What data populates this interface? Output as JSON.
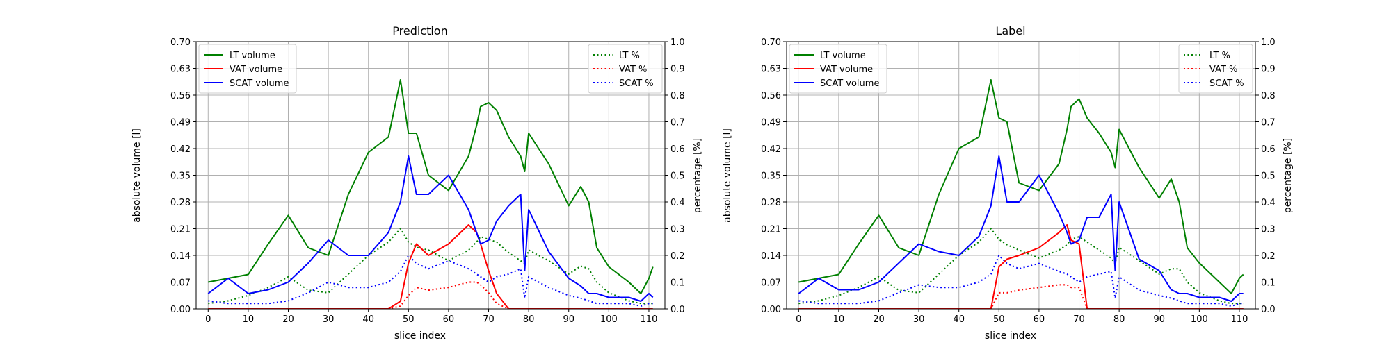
{
  "chart_data": [
    {
      "type": "line",
      "title": "Prediction",
      "xlabel": "slice index",
      "ylabel_left": "absolute volume [l]",
      "ylabel_right": "percentage [%]",
      "xlim": [
        -3,
        114
      ],
      "ylim_left": [
        0,
        0.7
      ],
      "ylim_right": [
        0,
        1.0
      ],
      "x_ticks": [
        "0",
        "10",
        "20",
        "30",
        "40",
        "50",
        "60",
        "70",
        "80",
        "90",
        "100",
        "110"
      ],
      "y_ticks_left": [
        "0.00",
        "0.07",
        "0.14",
        "0.21",
        "0.28",
        "0.35",
        "0.42",
        "0.49",
        "0.56",
        "0.63",
        "0.70"
      ],
      "y_ticks_right": [
        "0.0",
        "0.1",
        "0.2",
        "0.3",
        "0.4",
        "0.5",
        "0.6",
        "0.7",
        "0.8",
        "0.9",
        "1.0"
      ],
      "grid": true,
      "legend_left_placement": "upper-left",
      "legend_right_placement": "upper-right",
      "x": [
        0,
        5,
        10,
        15,
        20,
        25,
        30,
        35,
        40,
        45,
        48,
        50,
        52,
        55,
        60,
        65,
        67,
        68,
        70,
        72,
        75,
        78,
        79,
        80,
        85,
        90,
        93,
        95,
        97,
        100,
        105,
        108,
        110,
        111
      ],
      "series": [
        {
          "name": "LT volume",
          "axis": "left",
          "style": "solid",
          "color": "#008000",
          "values": [
            0.07,
            0.08,
            0.09,
            0.17,
            0.245,
            0.16,
            0.14,
            0.3,
            0.41,
            0.45,
            0.6,
            0.46,
            0.46,
            0.35,
            0.31,
            0.4,
            0.48,
            0.53,
            0.54,
            0.52,
            0.45,
            0.4,
            0.36,
            0.46,
            0.38,
            0.27,
            0.32,
            0.28,
            0.16,
            0.11,
            0.07,
            0.04,
            0.08,
            0.11
          ]
        },
        {
          "name": "VAT volume",
          "axis": "left",
          "style": "solid",
          "color": "#ff0000",
          "values": [
            0,
            0,
            0,
            0,
            0,
            0,
            0,
            0,
            0,
            0,
            0.02,
            0.12,
            0.17,
            0.14,
            0.17,
            0.22,
            0.2,
            0.17,
            0.1,
            0.04,
            0,
            0,
            0,
            0,
            0,
            0,
            0,
            0,
            0,
            0,
            0,
            0,
            0,
            0
          ]
        },
        {
          "name": "SCAT volume",
          "axis": "left",
          "style": "solid",
          "color": "#0000ff",
          "values": [
            0.04,
            0.08,
            0.04,
            0.05,
            0.07,
            0.12,
            0.18,
            0.14,
            0.14,
            0.2,
            0.28,
            0.4,
            0.3,
            0.3,
            0.35,
            0.26,
            0.2,
            0.17,
            0.18,
            0.23,
            0.27,
            0.3,
            0.1,
            0.26,
            0.15,
            0.08,
            0.06,
            0.04,
            0.04,
            0.03,
            0.03,
            0.02,
            0.04,
            0.03
          ]
        },
        {
          "name": "LT %",
          "axis": "right",
          "style": "dotted",
          "color": "#008000",
          "values": [
            0.02,
            0.03,
            0.05,
            0.08,
            0.12,
            0.07,
            0.06,
            0.13,
            0.2,
            0.25,
            0.3,
            0.25,
            0.23,
            0.22,
            0.18,
            0.22,
            0.25,
            0.27,
            0.26,
            0.25,
            0.21,
            0.18,
            0.17,
            0.22,
            0.18,
            0.13,
            0.16,
            0.15,
            0.1,
            0.06,
            0.03,
            0.02,
            0.02,
            0.02
          ]
        },
        {
          "name": "VAT %",
          "axis": "right",
          "style": "dotted",
          "color": "#ff0000",
          "values": [
            0,
            0,
            0,
            0,
            0,
            0,
            0,
            0,
            0,
            0,
            0.01,
            0.05,
            0.08,
            0.07,
            0.08,
            0.1,
            0.1,
            0.09,
            0.06,
            0.02,
            0,
            0,
            0,
            0,
            0,
            0,
            0,
            0,
            0,
            0,
            0,
            0,
            0,
            0
          ]
        },
        {
          "name": "SCAT %",
          "axis": "right",
          "style": "dotted",
          "color": "#0000ff",
          "values": [
            0.03,
            0.02,
            0.02,
            0.02,
            0.03,
            0.06,
            0.1,
            0.08,
            0.08,
            0.1,
            0.14,
            0.2,
            0.17,
            0.15,
            0.18,
            0.15,
            0.13,
            0.12,
            0.1,
            0.12,
            0.13,
            0.15,
            0.04,
            0.12,
            0.08,
            0.05,
            0.04,
            0.03,
            0.02,
            0.02,
            0.02,
            0.01,
            0.02,
            0.02
          ]
        }
      ]
    },
    {
      "type": "line",
      "title": "Label",
      "xlabel": "slice index",
      "ylabel_left": "absolute volume [l]",
      "ylabel_right": "percentage [%]",
      "xlim": [
        -3,
        114
      ],
      "ylim_left": [
        0,
        0.7
      ],
      "ylim_right": [
        0,
        1.0
      ],
      "x_ticks": [
        "0",
        "10",
        "20",
        "30",
        "40",
        "50",
        "60",
        "70",
        "80",
        "90",
        "100",
        "110"
      ],
      "y_ticks_left": [
        "0.00",
        "0.07",
        "0.14",
        "0.21",
        "0.28",
        "0.35",
        "0.42",
        "0.49",
        "0.56",
        "0.63",
        "0.70"
      ],
      "y_ticks_right": [
        "0.0",
        "0.1",
        "0.2",
        "0.3",
        "0.4",
        "0.5",
        "0.6",
        "0.7",
        "0.8",
        "0.9",
        "1.0"
      ],
      "grid": true,
      "legend_left_placement": "upper-left",
      "legend_right_placement": "upper-right",
      "x": [
        0,
        5,
        10,
        15,
        20,
        25,
        30,
        35,
        40,
        45,
        48,
        50,
        52,
        55,
        60,
        65,
        67,
        68,
        70,
        72,
        75,
        78,
        79,
        80,
        85,
        90,
        93,
        95,
        97,
        100,
        105,
        108,
        110,
        111
      ],
      "series": [
        {
          "name": "LT volume",
          "axis": "left",
          "style": "solid",
          "color": "#008000",
          "values": [
            0.07,
            0.08,
            0.09,
            0.17,
            0.245,
            0.16,
            0.14,
            0.3,
            0.42,
            0.45,
            0.6,
            0.5,
            0.49,
            0.33,
            0.31,
            0.38,
            0.47,
            0.53,
            0.55,
            0.5,
            0.46,
            0.41,
            0.37,
            0.47,
            0.37,
            0.29,
            0.34,
            0.28,
            0.16,
            0.12,
            0.07,
            0.04,
            0.08,
            0.09
          ]
        },
        {
          "name": "VAT volume",
          "axis": "left",
          "style": "solid",
          "color": "#ff0000",
          "values": [
            0,
            0,
            0,
            0,
            0,
            0,
            0,
            0,
            0,
            0,
            0,
            0.11,
            0.13,
            0.14,
            0.16,
            0.2,
            0.22,
            0.18,
            0.17,
            0,
            0,
            0,
            0,
            0,
            0,
            0,
            0,
            0,
            0,
            0,
            0,
            0,
            0,
            0
          ]
        },
        {
          "name": "SCAT volume",
          "axis": "left",
          "style": "solid",
          "color": "#0000ff",
          "values": [
            0.04,
            0.08,
            0.05,
            0.05,
            0.07,
            0.12,
            0.17,
            0.15,
            0.14,
            0.19,
            0.27,
            0.4,
            0.28,
            0.28,
            0.35,
            0.25,
            0.2,
            0.17,
            0.18,
            0.24,
            0.24,
            0.3,
            0.1,
            0.28,
            0.13,
            0.1,
            0.05,
            0.04,
            0.04,
            0.03,
            0.03,
            0.02,
            0.04,
            0.04
          ]
        },
        {
          "name": "LT %",
          "axis": "right",
          "style": "dotted",
          "color": "#008000",
          "values": [
            0.02,
            0.03,
            0.05,
            0.08,
            0.12,
            0.07,
            0.06,
            0.13,
            0.2,
            0.25,
            0.3,
            0.26,
            0.24,
            0.22,
            0.19,
            0.22,
            0.24,
            0.26,
            0.27,
            0.25,
            0.22,
            0.19,
            0.17,
            0.23,
            0.18,
            0.13,
            0.15,
            0.15,
            0.1,
            0.06,
            0.03,
            0.02,
            0.02,
            0.02
          ]
        },
        {
          "name": "VAT %",
          "axis": "right",
          "style": "dotted",
          "color": "#ff0000",
          "values": [
            0,
            0,
            0,
            0,
            0,
            0,
            0,
            0,
            0,
            0,
            0,
            0.06,
            0.06,
            0.07,
            0.08,
            0.09,
            0.09,
            0.08,
            0.08,
            0,
            0,
            0,
            0,
            0,
            0,
            0,
            0,
            0,
            0,
            0,
            0,
            0,
            0,
            0
          ]
        },
        {
          "name": "SCAT %",
          "axis": "right",
          "style": "dotted",
          "color": "#0000ff",
          "values": [
            0.03,
            0.02,
            0.02,
            0.02,
            0.03,
            0.06,
            0.09,
            0.08,
            0.08,
            0.1,
            0.13,
            0.2,
            0.17,
            0.15,
            0.17,
            0.14,
            0.13,
            0.12,
            0.1,
            0.12,
            0.13,
            0.14,
            0.04,
            0.12,
            0.07,
            0.05,
            0.04,
            0.03,
            0.02,
            0.02,
            0.02,
            0.01,
            0.02,
            0.02
          ]
        }
      ]
    }
  ]
}
